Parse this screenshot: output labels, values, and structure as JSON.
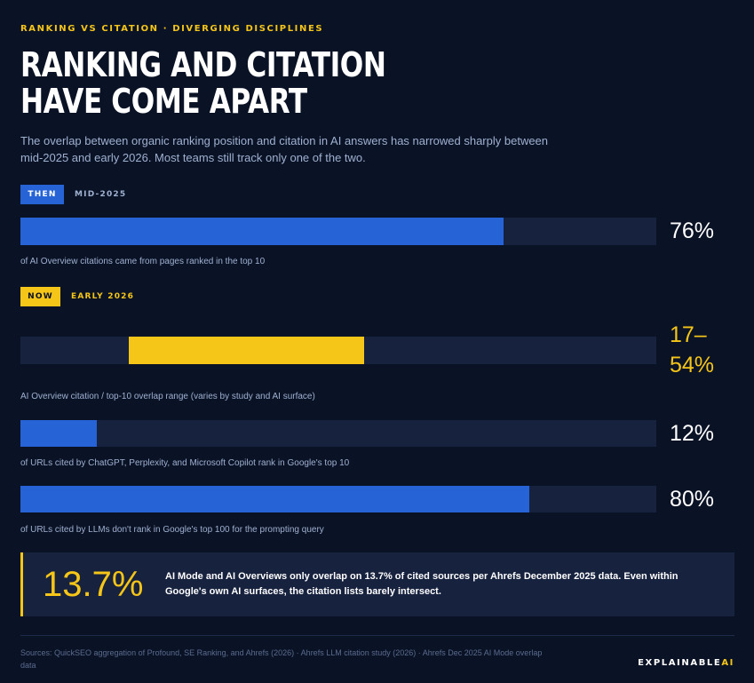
{
  "eyebrow": "RANKING VS CITATION · DIVERGING DISCIPLINES",
  "title_line1": "RANKING AND CITATION",
  "title_line2": "HAVE COME APART",
  "subtitle": "The overlap between organic ranking position and citation in AI answers has narrowed sharply between mid-2025 and early 2026. Most teams still track only one of the two.",
  "then": {
    "tag": "THEN",
    "period": "MID-2025"
  },
  "now": {
    "tag": "NOW",
    "period": "EARLY 2026"
  },
  "colors": {
    "background": "#0a1226",
    "track": "#17223f",
    "blue": "#2563d6",
    "yellow": "#f5c518"
  },
  "chart_data": {
    "type": "bar",
    "orientation": "horizontal",
    "xlim": [
      0,
      100
    ],
    "unit": "%",
    "bars": [
      {
        "group": "THEN",
        "start": 0,
        "end": 76,
        "label": "76%",
        "caption": "of AI Overview citations came from pages ranked in the top 10",
        "color": "#2563d6"
      },
      {
        "group": "NOW",
        "start": 17,
        "end": 54,
        "label_line1": "17–",
        "label_line2": "54%",
        "caption": "AI Overview citation / top-10 overlap range (varies by study and AI surface)",
        "color": "#f5c518"
      },
      {
        "group": "NOW",
        "start": 0,
        "end": 12,
        "label": "12%",
        "caption": "of URLs cited by ChatGPT, Perplexity, and Microsoft Copilot rank in Google's top 10",
        "color": "#2563d6"
      },
      {
        "group": "NOW",
        "start": 0,
        "end": 80,
        "label": "80%",
        "caption": "of URLs cited by LLMs don't rank in Google's top 100 for the prompting query",
        "color": "#2563d6"
      }
    ]
  },
  "callout": {
    "value": "13.7%",
    "text": "AI Mode and AI Overviews only overlap on 13.7% of cited sources per Ahrefs December 2025 data. Even within Google's own AI surfaces, the citation lists barely intersect."
  },
  "sources": "Sources: QuickSEO aggregation of Profound, SE Ranking, and Ahrefs (2026) · Ahrefs LLM citation study (2026) · Ahrefs Dec 2025 AI Mode overlap data",
  "brand": {
    "part1": "EXPLAINABLE",
    "part2": "AI"
  }
}
